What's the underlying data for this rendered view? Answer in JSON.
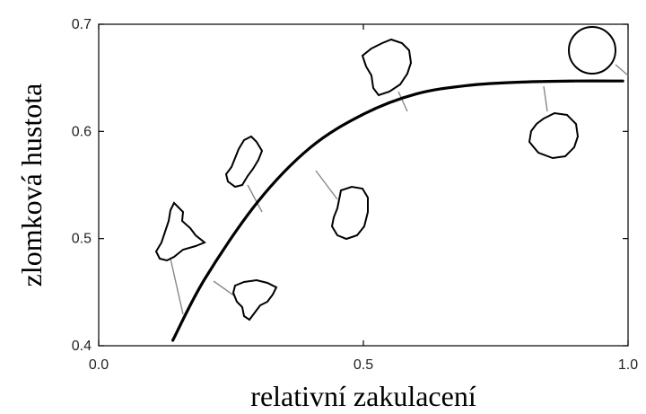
{
  "chart_data": {
    "type": "line",
    "title": "",
    "xlabel": "relativní zakulacení",
    "ylabel": "zlomková hustota",
    "xlim": [
      0.0,
      1.0
    ],
    "ylim": [
      0.4,
      0.7
    ],
    "xticks": [
      0.0,
      0.5,
      1.0
    ],
    "xtick_labels": [
      "0.0",
      "0.5",
      "1.0"
    ],
    "yticks": [
      0.4,
      0.5,
      0.6,
      0.7
    ],
    "ytick_labels": [
      "0.4",
      "0.5",
      "0.6",
      "0.7"
    ],
    "grid": false,
    "legend": "none",
    "series": [
      {
        "x": [
          0.14,
          0.2,
          0.3,
          0.4,
          0.5,
          0.6,
          0.7,
          0.8,
          0.9,
          0.99
        ],
        "y": [
          0.405,
          0.462,
          0.534,
          0.585,
          0.616,
          0.635,
          0.643,
          0.646,
          0.647,
          0.647
        ]
      }
    ],
    "colors": {
      "curve": "#000000",
      "axis": "#000000",
      "leader": "#888888"
    },
    "particle_icons": [
      "triangular-particle-icon",
      "flake-particle-icon",
      "jagged-particle-icon",
      "rounded-particle-icon",
      "angular-particle-icon",
      "subrounded-particle-icon",
      "circle-particle-icon"
    ]
  }
}
